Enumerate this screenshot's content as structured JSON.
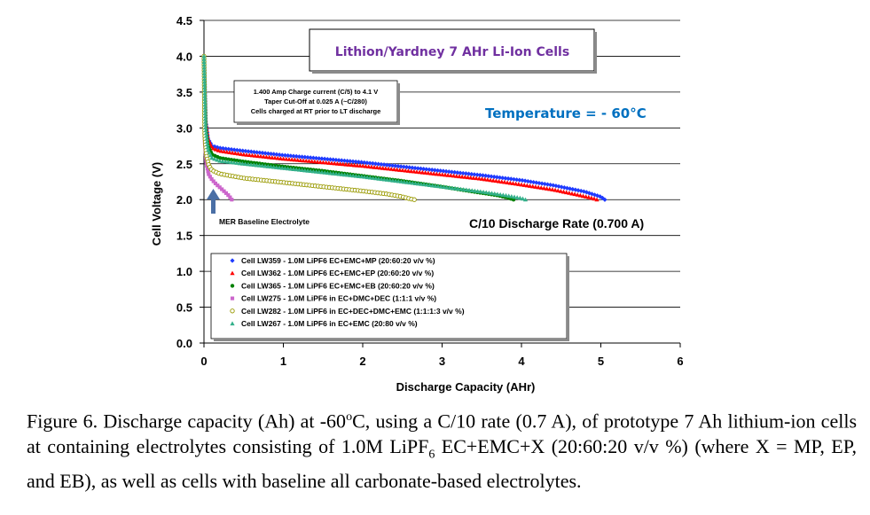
{
  "chart_data": {
    "type": "scatter",
    "title": "Lithion/Yardney 7 AHr Li-Ion Cells",
    "xlabel": "Discharge Capacity (AHr)",
    "ylabel": "Cell Voltage (V)",
    "xlim": [
      0,
      6
    ],
    "ylim": [
      0,
      4.5
    ],
    "x_ticks": [
      "0",
      "1",
      "2",
      "3",
      "4",
      "5",
      "6"
    ],
    "y_ticks": [
      "0.0",
      "0.5",
      "1.0",
      "1.5",
      "2.0",
      "2.5",
      "3.0",
      "3.5",
      "4.0",
      "4.5"
    ],
    "grid": "horizontal",
    "legend_position": "bottom-left",
    "annotations": {
      "temperature": "Temperature = - 60°C",
      "rate": "C/10 Discharge Rate (0.700 A)",
      "charge_note": [
        "1.400 Amp Charge current (C/5) to 4.1 V",
        "Taper Cut-Off at 0.025 A (~C/280)",
        "Cells charged at RT prior to LT discharge"
      ],
      "baseline_arrow": "MER  Baseline Electrolyte"
    },
    "series": [
      {
        "name": "Cell LW359  - 1.0M LiPF6 EC+EMC+MP (20:60:20  v/v %)",
        "color": "#1f3bff",
        "marker": "diamond",
        "x": [
          0,
          0.02,
          0.05,
          0.1,
          0.2,
          0.5,
          1.0,
          1.5,
          2.0,
          2.5,
          3.0,
          3.5,
          4.0,
          4.4,
          4.8,
          5.0,
          5.05
        ],
        "y": [
          4.0,
          3.1,
          2.85,
          2.75,
          2.72,
          2.68,
          2.62,
          2.57,
          2.52,
          2.46,
          2.4,
          2.34,
          2.27,
          2.2,
          2.11,
          2.04,
          2.0
        ]
      },
      {
        "name": "Cell LW362  - 1.0M LiPF6 EC+EMC+EP (20:60:20  v/v %)",
        "color": "#ff0000",
        "marker": "triangle",
        "x": [
          0,
          0.02,
          0.05,
          0.1,
          0.2,
          0.5,
          1.0,
          1.5,
          2.0,
          2.5,
          3.0,
          3.5,
          4.0,
          4.4,
          4.7,
          4.9,
          4.95
        ],
        "y": [
          4.0,
          3.1,
          2.85,
          2.72,
          2.68,
          2.63,
          2.57,
          2.52,
          2.47,
          2.41,
          2.35,
          2.29,
          2.21,
          2.14,
          2.07,
          2.02,
          2.0
        ]
      },
      {
        "name": "Cell LW365  - 1.0M LiPF6 EC+EMC+EB (20:60:20  v/v %)",
        "color": "#008000",
        "marker": "circle",
        "x": [
          0,
          0.02,
          0.05,
          0.1,
          0.2,
          0.5,
          1.0,
          1.5,
          2.0,
          2.5,
          3.0,
          3.4,
          3.7,
          3.85,
          3.9
        ],
        "y": [
          4.0,
          3.0,
          2.75,
          2.63,
          2.58,
          2.53,
          2.46,
          2.4,
          2.33,
          2.26,
          2.18,
          2.11,
          2.06,
          2.02,
          2.0
        ]
      },
      {
        "name": "Cell LW275  - 1.0M LiPF6 in EC+DMC+DEC  (1:1:1  v/v %)",
        "color": "#cc66cc",
        "marker": "square",
        "x": [
          0,
          0.01,
          0.03,
          0.06,
          0.1,
          0.15,
          0.2,
          0.25,
          0.3,
          0.33,
          0.35
        ],
        "y": [
          4.0,
          2.8,
          2.5,
          2.35,
          2.28,
          2.22,
          2.17,
          2.12,
          2.07,
          2.03,
          2.0
        ]
      },
      {
        "name": "Cell LW282  - 1.0M LiPF6 in EC+DEC+DMC+EMC  (1:1:1:3   v/v %)",
        "color": "#999900",
        "marker": "circle-open",
        "x": [
          0,
          0.01,
          0.03,
          0.06,
          0.1,
          0.2,
          0.5,
          1.0,
          1.5,
          2.0,
          2.3,
          2.5,
          2.6,
          2.65
        ],
        "y": [
          4.0,
          2.9,
          2.62,
          2.48,
          2.41,
          2.36,
          2.3,
          2.24,
          2.18,
          2.12,
          2.08,
          2.04,
          2.01,
          2.0
        ]
      },
      {
        "name": "Cell LW267  - 1.0M LiPF6 in EC+EMC  (20:80   v/v %)",
        "color": "#33b08a",
        "marker": "triangle",
        "x": [
          0,
          0.02,
          0.05,
          0.1,
          0.2,
          0.5,
          1.0,
          1.5,
          2.0,
          2.5,
          3.0,
          3.5,
          3.8,
          4.0,
          4.05
        ],
        "y": [
          4.0,
          3.0,
          2.7,
          2.58,
          2.54,
          2.5,
          2.44,
          2.38,
          2.32,
          2.25,
          2.18,
          2.11,
          2.06,
          2.02,
          2.0
        ]
      }
    ]
  },
  "caption": {
    "part1": "Figure 6.  Discharge capacity (Ah) at -60",
    "sup": "o",
    "part2": "C, using a C/10 rate (0.7 A), of prototype 7 Ah lithium-ion cells at containing electrolytes consisting of 1.0M LiPF",
    "sub": "6",
    "part3": " EC+EMC+X (20:60:20 v/v %) (where X = MP, EP, and EB), as well as cells with baseline all carbonate-based electrolytes."
  }
}
